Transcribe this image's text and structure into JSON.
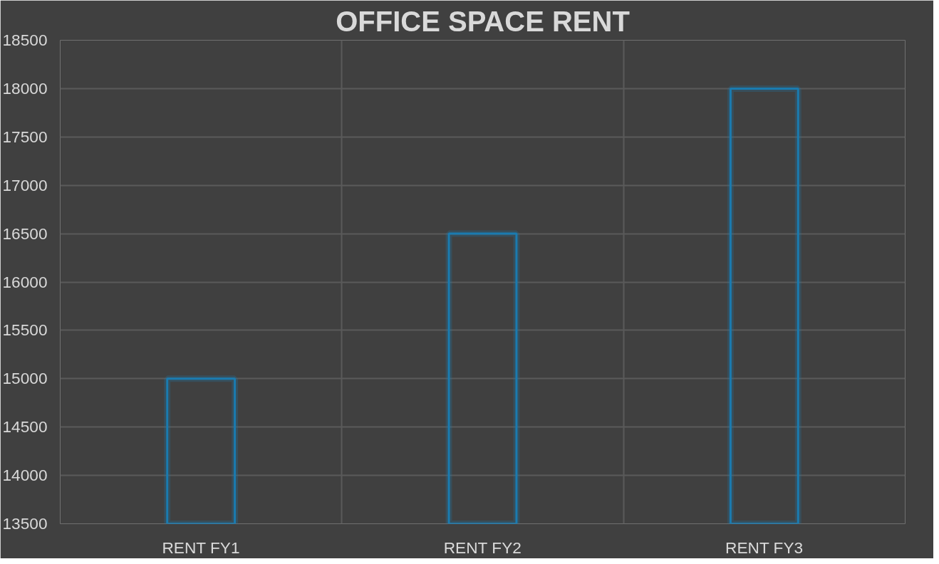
{
  "chart_data": {
    "type": "bar",
    "title": "OFFICE SPACE RENT",
    "categories": [
      "RENT FY1",
      "RENT FY2",
      "RENT FY3"
    ],
    "values": [
      15000,
      16500,
      18000
    ],
    "color": "#1a7bb0",
    "ylim": [
      13500,
      18500
    ],
    "yticks": [
      13500,
      14000,
      14500,
      15000,
      15500,
      16000,
      16500,
      17000,
      17500,
      18000,
      18500
    ],
    "grid": true
  }
}
